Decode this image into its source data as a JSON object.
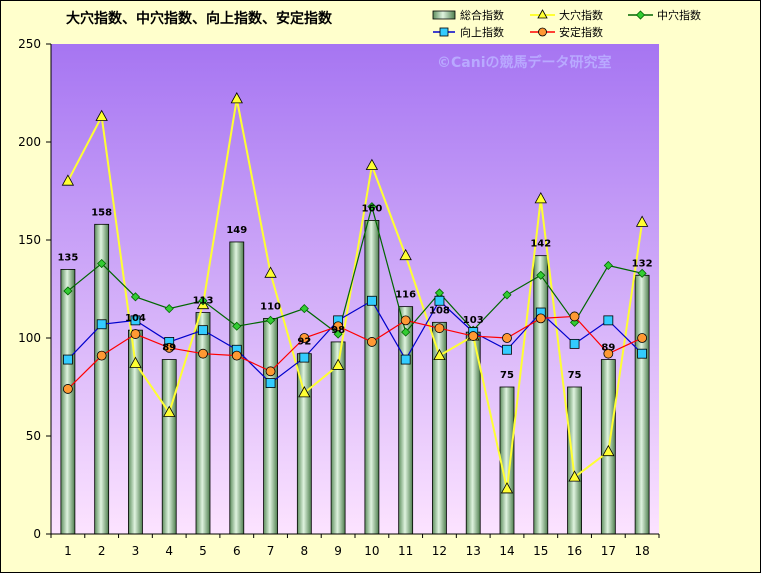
{
  "chart_data": {
    "type": "bar",
    "title": "大穴指数、中穴指数、向上指数、安定指数",
    "watermark": "©Caniの競馬データ研究室",
    "categories": [
      "1",
      "2",
      "3",
      "4",
      "5",
      "6",
      "7",
      "8",
      "9",
      "10",
      "11",
      "12",
      "13",
      "14",
      "15",
      "16",
      "17",
      "18"
    ],
    "ylim": [
      0,
      250
    ],
    "yticks": [
      "0",
      "50",
      "100",
      "150",
      "200",
      "250"
    ],
    "grid": false,
    "legend_position": "top-right",
    "bar_series": {
      "name": "総合指数",
      "values": [
        135,
        158,
        104,
        89,
        113,
        149,
        110,
        92,
        98,
        160,
        116,
        108,
        103,
        75,
        142,
        75,
        89,
        132
      ],
      "labels": [
        "135",
        "158",
        "104",
        "89",
        "113",
        "149",
        "110",
        "92",
        "98",
        "160",
        "116",
        "108",
        "103",
        "75",
        "142",
        "75",
        "89",
        "132"
      ],
      "color": "#9fcf9f"
    },
    "series": [
      {
        "name": "大穴指数",
        "color": "#ffff33",
        "marker": "triangle",
        "values": [
          180,
          213,
          87,
          62,
          117,
          222,
          133,
          72,
          86,
          188,
          142,
          91,
          101,
          23,
          171,
          29,
          42,
          159
        ]
      },
      {
        "name": "中穴指数",
        "color": "#006600",
        "marker": "diamond",
        "values": [
          124,
          138,
          121,
          115,
          119,
          106,
          109,
          115,
          102,
          167,
          103,
          123,
          104,
          122,
          132,
          108,
          137,
          133
        ]
      },
      {
        "name": "向上指数",
        "color": "#0000cc",
        "marker": "square",
        "values": [
          89,
          107,
          109,
          98,
          104,
          94,
          77,
          90,
          109,
          119,
          89,
          119,
          103,
          94,
          113,
          97,
          109,
          92
        ]
      },
      {
        "name": "安定指数",
        "color": "#ff0000",
        "marker": "circle",
        "values": [
          74,
          91,
          102,
          95,
          92,
          91,
          83,
          100,
          106,
          98,
          109,
          105,
          101,
          100,
          110,
          111,
          92,
          100
        ]
      }
    ]
  }
}
